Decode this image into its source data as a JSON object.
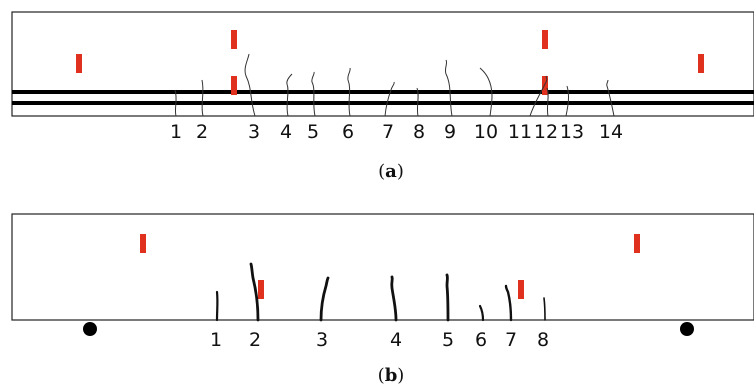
{
  "panels": [
    {
      "id": "a",
      "caption_open": "(",
      "caption_letter": "a",
      "caption_close": ")",
      "crack_labels": [
        "1",
        "2",
        "3",
        "4",
        "5",
        "6",
        "7",
        "8",
        "9",
        "10",
        "11",
        "12",
        "13",
        "14"
      ],
      "gauge_color": "#e0301e",
      "crack_color": "#333333"
    },
    {
      "id": "b",
      "caption_open": "(",
      "caption_letter": "b",
      "caption_close": ")",
      "crack_labels": [
        "1",
        "2",
        "3",
        "4",
        "5",
        "6",
        "7",
        "8"
      ],
      "gauge_color": "#e0301e",
      "crack_color": "#111111"
    }
  ]
}
